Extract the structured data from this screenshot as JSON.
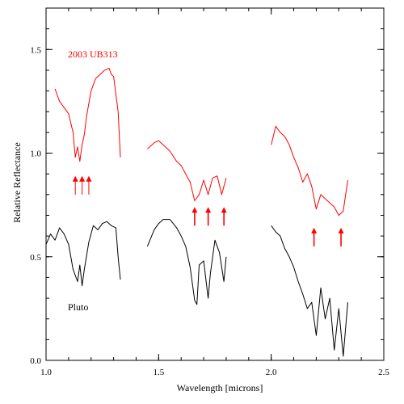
{
  "chart_data": {
    "type": "line",
    "xlabel": "Wavelength [microns]",
    "ylabel": "Relative Reflectance",
    "xlim": [
      1.0,
      2.5
    ],
    "ylim": [
      0.0,
      1.7
    ],
    "x_ticks": [
      1.0,
      1.5,
      2.0,
      2.5
    ],
    "x_tick_labels": [
      "1.0",
      "1.5",
      "2.0",
      "2.5"
    ],
    "y_ticks": [
      0.0,
      0.5,
      1.0,
      1.5
    ],
    "y_tick_labels": [
      "0.0",
      "0.5",
      "1.0",
      "1.5"
    ],
    "grid": false,
    "series": [
      {
        "name": "2003 UB313",
        "color": "#ff0000",
        "style": "solid",
        "segments": [
          {
            "x": [
              1.04,
              1.06,
              1.08,
              1.1,
              1.12,
              1.13,
              1.14,
              1.15,
              1.16,
              1.17,
              1.18,
              1.2,
              1.22,
              1.24,
              1.26,
              1.28,
              1.29,
              1.3,
              1.32,
              1.33
            ],
            "y": [
              1.31,
              1.25,
              1.22,
              1.19,
              1.1,
              0.98,
              1.03,
              0.96,
              1.04,
              1.09,
              1.18,
              1.3,
              1.36,
              1.38,
              1.4,
              1.41,
              1.38,
              1.37,
              1.2,
              0.98
            ]
          },
          {
            "x": [
              1.45,
              1.48,
              1.5,
              1.52,
              1.55,
              1.58,
              1.6,
              1.62,
              1.64,
              1.66,
              1.68,
              1.7,
              1.72,
              1.74,
              1.76,
              1.78,
              1.8
            ],
            "y": [
              1.02,
              1.05,
              1.06,
              1.04,
              1.01,
              0.96,
              0.94,
              0.9,
              0.86,
              0.77,
              0.8,
              0.87,
              0.8,
              0.88,
              0.89,
              0.8,
              0.88
            ]
          },
          {
            "x": [
              2.0,
              2.02,
              2.04,
              2.06,
              2.08,
              2.1,
              2.12,
              2.14,
              2.16,
              2.18,
              2.2,
              2.22,
              2.24,
              2.26,
              2.28,
              2.3,
              2.32,
              2.34
            ],
            "y": [
              1.04,
              1.13,
              1.1,
              1.08,
              1.04,
              0.98,
              0.93,
              0.86,
              0.9,
              0.84,
              0.73,
              0.8,
              0.78,
              0.76,
              0.74,
              0.7,
              0.72,
              0.87
            ]
          }
        ]
      },
      {
        "name": "Pluto",
        "color": "#000000",
        "style": "solid",
        "segments": [
          {
            "x": [
              1.0,
              1.02,
              1.04,
              1.06,
              1.08,
              1.1,
              1.12,
              1.14,
              1.15,
              1.16,
              1.17,
              1.19,
              1.21,
              1.23,
              1.25,
              1.27,
              1.29,
              1.31,
              1.32,
              1.33
            ],
            "y": [
              0.56,
              0.61,
              0.58,
              0.64,
              0.61,
              0.56,
              0.44,
              0.38,
              0.46,
              0.36,
              0.44,
              0.57,
              0.65,
              0.63,
              0.66,
              0.67,
              0.65,
              0.64,
              0.5,
              0.39
            ]
          },
          {
            "x": [
              1.45,
              1.48,
              1.5,
              1.52,
              1.55,
              1.58,
              1.6,
              1.62,
              1.64,
              1.66,
              1.67,
              1.68,
              1.7,
              1.72,
              1.73,
              1.75,
              1.77,
              1.79,
              1.8
            ],
            "y": [
              0.55,
              0.63,
              0.66,
              0.68,
              0.68,
              0.64,
              0.6,
              0.55,
              0.45,
              0.29,
              0.27,
              0.46,
              0.48,
              0.3,
              0.42,
              0.58,
              0.52,
              0.38,
              0.5
            ]
          },
          {
            "x": [
              2.0,
              2.02,
              2.04,
              2.06,
              2.08,
              2.1,
              2.12,
              2.14,
              2.16,
              2.18,
              2.2,
              2.22,
              2.24,
              2.26,
              2.28,
              2.3,
              2.32,
              2.34
            ],
            "y": [
              0.65,
              0.62,
              0.6,
              0.54,
              0.5,
              0.45,
              0.38,
              0.32,
              0.25,
              0.28,
              0.12,
              0.35,
              0.2,
              0.3,
              0.05,
              0.25,
              0.02,
              0.28
            ]
          }
        ]
      }
    ],
    "annotations": {
      "ub313_label": "2003 UB313",
      "pluto_label": "Pluto",
      "arrows": [
        {
          "x": 1.13,
          "y_tip": 0.89,
          "y_base": 0.8,
          "style": "thin"
        },
        {
          "x": 1.16,
          "y_tip": 0.89,
          "y_base": 0.8,
          "style": "thin"
        },
        {
          "x": 1.19,
          "y_tip": 0.89,
          "y_base": 0.8,
          "style": "thin"
        },
        {
          "x": 1.66,
          "y_tip": 0.74,
          "y_base": 0.65,
          "style": "bold"
        },
        {
          "x": 1.72,
          "y_tip": 0.74,
          "y_base": 0.65,
          "style": "bold"
        },
        {
          "x": 1.79,
          "y_tip": 0.74,
          "y_base": 0.65,
          "style": "bold"
        },
        {
          "x": 2.19,
          "y_tip": 0.64,
          "y_base": 0.55,
          "style": "bold"
        },
        {
          "x": 2.31,
          "y_tip": 0.64,
          "y_base": 0.55,
          "style": "bold"
        }
      ]
    }
  }
}
